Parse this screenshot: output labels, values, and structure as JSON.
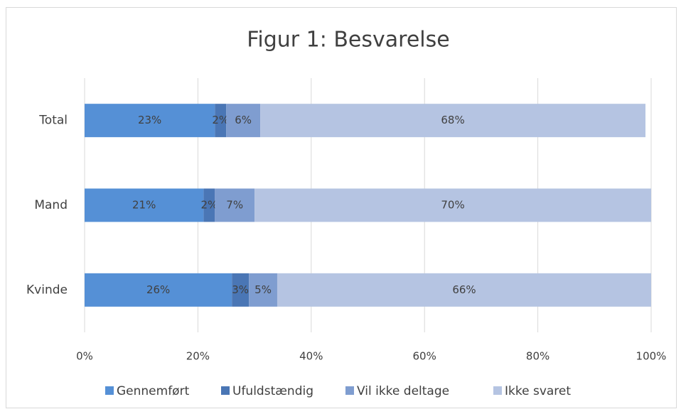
{
  "chart_data": {
    "type": "stacked-barh",
    "title": "Figur 1: Besvarelse",
    "categories": [
      "Total",
      "Mand",
      "Kvinde"
    ],
    "series": [
      {
        "name": "Gennemført",
        "color": "#5590d6",
        "values": [
          23,
          21,
          26
        ],
        "value_labels": [
          "23%",
          "21%",
          "26%"
        ]
      },
      {
        "name": "Ufuldstændig",
        "color": "#4a76b5",
        "values": [
          2,
          2,
          3
        ],
        "value_labels": [
          "2%",
          "2%",
          "3%"
        ]
      },
      {
        "name": "Vil ikke deltage",
        "color": "#7f9dd0",
        "values": [
          6,
          7,
          5
        ],
        "value_labels": [
          "6%",
          "7%",
          "5%"
        ]
      },
      {
        "name": "Ikke svaret",
        "color": "#b5c4e2",
        "values": [
          68,
          70,
          66
        ],
        "value_labels": [
          "68%",
          "70%",
          "66%"
        ]
      }
    ],
    "xlim": [
      0,
      100
    ],
    "xticks": [
      {
        "value": 0,
        "label": "0%"
      },
      {
        "value": 20,
        "label": "20%"
      },
      {
        "value": 40,
        "label": "40%"
      },
      {
        "value": 60,
        "label": "60%"
      },
      {
        "value": 80,
        "label": "80%"
      },
      {
        "value": 100,
        "label": "100%"
      }
    ],
    "grid": true,
    "legend": "bottom"
  }
}
